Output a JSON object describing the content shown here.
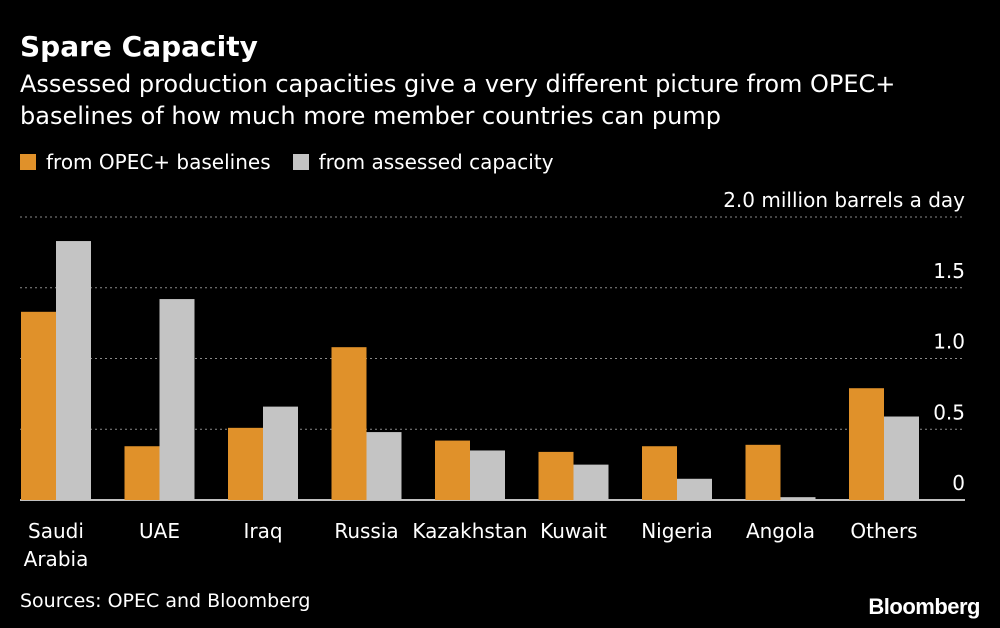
{
  "header": {
    "title": "Spare Capacity",
    "subtitle": "Assessed production capacities give a very different picture from OPEC+ baselines of how much more member countries can pump"
  },
  "footer": {
    "source": "Sources: OPEC and Bloomberg",
    "brand": "Bloomberg"
  },
  "colors": {
    "background": "#000000",
    "series_baselines": "#e0912a",
    "series_assessed": "#c4c4c4",
    "grid": "#8a8a8a",
    "axis": "#ffffff"
  },
  "chart_data": {
    "type": "bar",
    "title": "Spare Capacity",
    "ylabel": "2.0 million barrels a day",
    "xlabel": "",
    "ylim": [
      0,
      2.0
    ],
    "yticks": [
      0,
      0.5,
      1.0,
      1.5,
      2.0
    ],
    "ytick_labels": [
      "0",
      "0.5",
      "1.0",
      "1.5",
      "2.0 million barrels a day"
    ],
    "grid": true,
    "legend_position": "top-left",
    "categories": [
      "Saudi Arabia",
      "UAE",
      "Iraq",
      "Russia",
      "Kazakhstan",
      "Kuwait",
      "Nigeria",
      "Angola",
      "Others"
    ],
    "category_lines": [
      [
        "Saudi",
        "Arabia"
      ],
      [
        "UAE"
      ],
      [
        "Iraq"
      ],
      [
        "Russia"
      ],
      [
        "Kazakhstan"
      ],
      [
        "Kuwait"
      ],
      [
        "Nigeria"
      ],
      [
        "Angola"
      ],
      [
        "Others"
      ]
    ],
    "series": [
      {
        "name": "from OPEC+ baselines",
        "values": [
          1.33,
          0.38,
          0.51,
          1.08,
          0.42,
          0.34,
          0.38,
          0.39,
          0.79
        ]
      },
      {
        "name": "from assessed capacity",
        "values": [
          1.83,
          1.42,
          0.66,
          0.48,
          0.35,
          0.25,
          0.15,
          0.02,
          0.59
        ]
      }
    ]
  }
}
